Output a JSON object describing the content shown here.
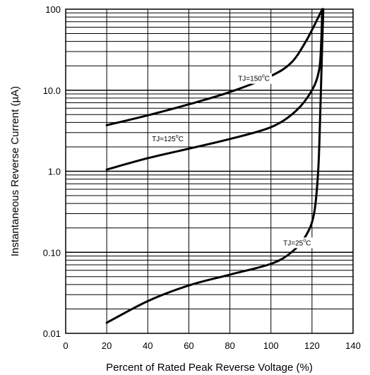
{
  "chart_data": {
    "type": "line",
    "xlabel": "Percent of Rated Peak Reverse Voltage (%)",
    "ylabel": "Instantaneous Reverse Current (µA)",
    "xlim": [
      0,
      140
    ],
    "ylim": [
      0.01,
      100
    ],
    "yscale": "log",
    "grid": true,
    "x_ticks": [
      0,
      20,
      40,
      60,
      80,
      100,
      120,
      140
    ],
    "y_ticks": [
      {
        "value": 0.01,
        "label": "0.01"
      },
      {
        "value": 0.1,
        "label": "0.10"
      },
      {
        "value": 1,
        "label": "1.0"
      },
      {
        "value": 10,
        "label": "10.0"
      },
      {
        "value": 100,
        "label": "100"
      }
    ],
    "series": [
      {
        "label_text": "TJ=150",
        "label_sup": "o",
        "label_unit": "C",
        "label_at": {
          "x": 84,
          "y": 13
        },
        "points": [
          [
            20,
            3.7
          ],
          [
            40,
            4.9
          ],
          [
            60,
            6.7
          ],
          [
            80,
            9.5
          ],
          [
            100,
            15
          ],
          [
            110,
            22
          ],
          [
            117,
            40
          ],
          [
            122,
            70
          ],
          [
            125,
            100
          ]
        ]
      },
      {
        "label_text": "TJ=125",
        "label_sup": "o",
        "label_unit": "C",
        "label_at": {
          "x": 42,
          "y": 2.35
        },
        "points": [
          [
            20,
            1.05
          ],
          [
            40,
            1.45
          ],
          [
            60,
            1.9
          ],
          [
            80,
            2.5
          ],
          [
            100,
            3.5
          ],
          [
            112,
            5.5
          ],
          [
            120,
            10
          ],
          [
            123.5,
            18
          ],
          [
            124.5,
            40
          ],
          [
            125,
            100
          ]
        ]
      },
      {
        "label_text": "TJ=25",
        "label_sup": "o",
        "label_unit": "C",
        "label_at": {
          "x": 106,
          "y": 0.122
        },
        "points": [
          [
            20,
            0.0135
          ],
          [
            40,
            0.025
          ],
          [
            60,
            0.039
          ],
          [
            80,
            0.053
          ],
          [
            100,
            0.072
          ],
          [
            110,
            0.1
          ],
          [
            117,
            0.16
          ],
          [
            121,
            0.3
          ],
          [
            123,
            1.0
          ],
          [
            124,
            5.0
          ],
          [
            125,
            40
          ],
          [
            125.5,
            100
          ]
        ]
      }
    ]
  }
}
